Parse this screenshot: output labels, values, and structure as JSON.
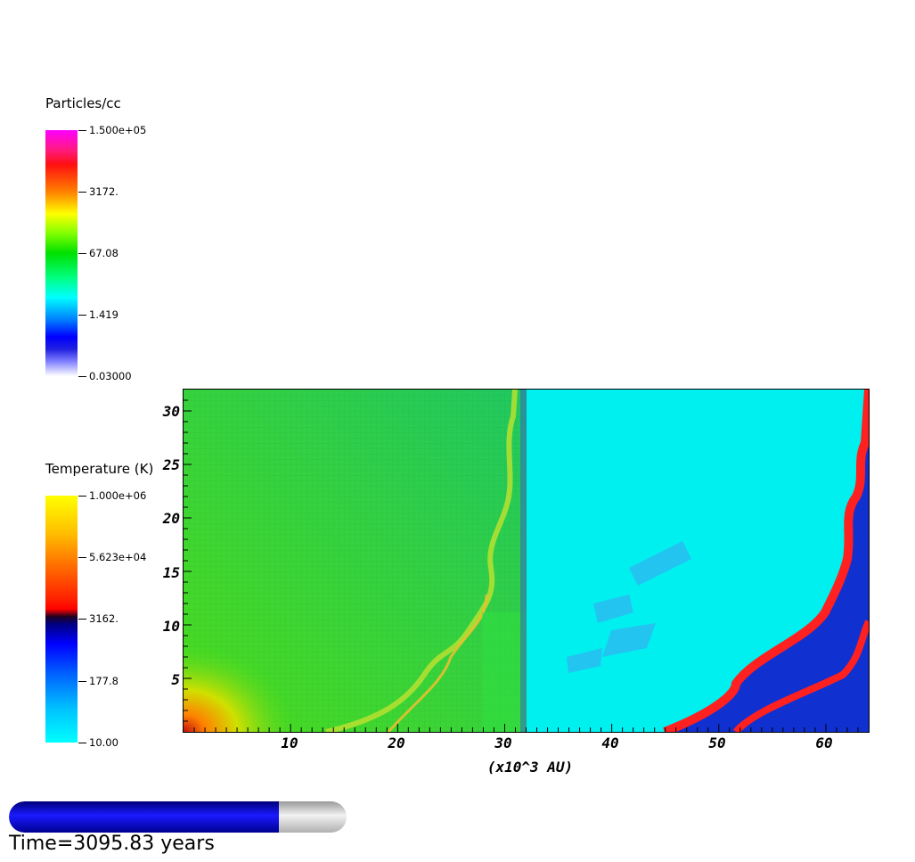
{
  "density_colorbar": {
    "title": "Particles/cc",
    "ticks": [
      "1.500e+05",
      "3172.",
      "67.08",
      "1.419",
      "0.03000"
    ]
  },
  "temperature_colorbar": {
    "title": "Temperature (K)",
    "ticks": [
      "1.000e+06",
      "5.623e+04",
      "3162.",
      "177.8",
      "10.00"
    ]
  },
  "chart_data": {
    "type": "heatmap",
    "xlabel": "(x10^3 AU)",
    "ylabel": "",
    "xlim": [
      0,
      64
    ],
    "ylim": [
      0,
      32
    ],
    "x_ticks": [
      10,
      20,
      30,
      40,
      50,
      60
    ],
    "y_ticks": [
      5,
      10,
      15,
      20,
      25,
      30
    ],
    "panels": [
      {
        "field": "Particles/cc",
        "x_range": [
          0,
          32
        ]
      },
      {
        "field": "Temperature (K)",
        "x_range": [
          32,
          64
        ]
      }
    ]
  },
  "animation": {
    "time_label": "Time=3095.83 years",
    "progress": 0.8
  },
  "colors": {
    "density_background": "#2ad82a",
    "temperature_background": "#00f0f0",
    "shock_red": "#ff2020",
    "shell_blue": "#1030d0",
    "progress_fill": "#0000c8"
  }
}
